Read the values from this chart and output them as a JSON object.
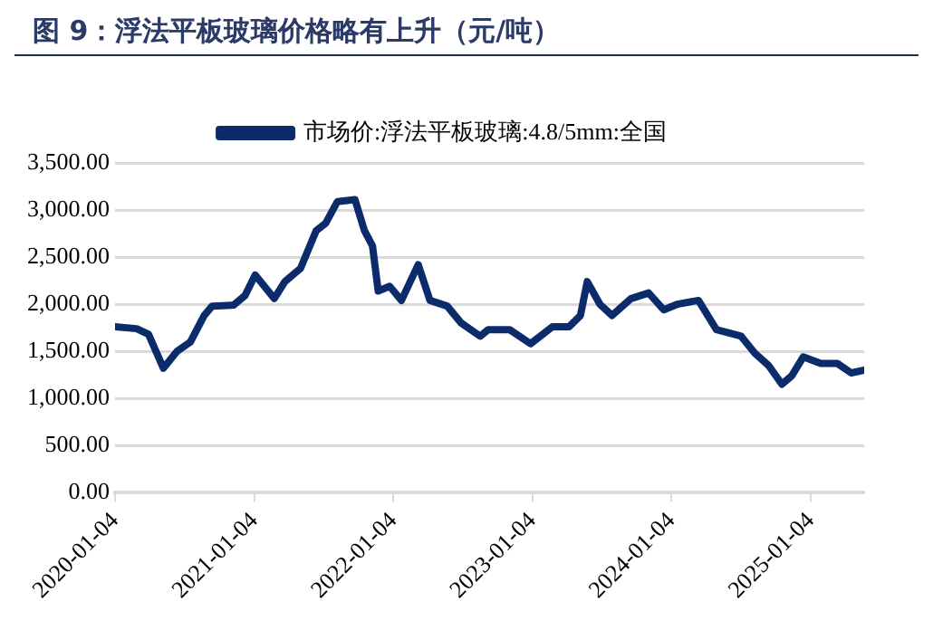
{
  "chart_data": {
    "type": "line",
    "title": "图 9：浮法平板玻璃价格略有上升（元/吨）",
    "x": [
      "2020-01-04",
      "2020-03-01",
      "2020-04-01",
      "2020-05-10",
      "2020-06-15",
      "2020-07-20",
      "2020-08-25",
      "2020-09-15",
      "2020-11-10",
      "2020-12-10",
      "2021-01-06",
      "2021-02-25",
      "2021-03-25",
      "2021-05-05",
      "2021-06-15",
      "2021-07-10",
      "2021-08-10",
      "2021-09-25",
      "2021-10-20",
      "2021-11-10",
      "2021-11-25",
      "2021-12-25",
      "2022-01-25",
      "2022-03-10",
      "2022-04-10",
      "2022-05-25",
      "2022-07-01",
      "2022-08-20",
      "2022-09-10",
      "2022-11-05",
      "2022-12-30",
      "2023-02-25",
      "2023-04-10",
      "2023-05-10",
      "2023-05-28",
      "2023-06-30",
      "2023-08-01",
      "2023-09-20",
      "2023-11-05",
      "2023-12-15",
      "2024-01-20",
      "2024-03-15",
      "2024-05-01",
      "2024-07-05",
      "2024-08-10",
      "2024-09-15",
      "2024-10-20",
      "2024-11-15",
      "2024-12-15",
      "2025-01-30",
      "2025-03-15",
      "2025-04-20",
      "2025-05-24"
    ],
    "series": [
      {
        "name": "市场价:浮法平板玻璃:4.8/5mm:全国",
        "color": "#0b2b6b",
        "values": [
          1760,
          1740,
          1680,
          1320,
          1500,
          1600,
          1880,
          1980,
          1990,
          2090,
          2310,
          2060,
          2240,
          2380,
          2780,
          2860,
          3090,
          3110,
          2780,
          2620,
          2140,
          2190,
          2040,
          2420,
          2040,
          1980,
          1800,
          1660,
          1730,
          1730,
          1580,
          1760,
          1760,
          1880,
          2240,
          2000,
          1880,
          2060,
          2120,
          1940,
          2000,
          2040,
          1730,
          1660,
          1480,
          1350,
          1150,
          1240,
          1440,
          1370,
          1370,
          1270,
          1300
        ]
      }
    ],
    "xlim": [
      "2020-01-04",
      "2025-05-24"
    ],
    "xticks": [
      "2020-01-04",
      "2021-01-04",
      "2022-01-04",
      "2023-01-04",
      "2024-01-04",
      "2025-01-04"
    ],
    "ylim": [
      0,
      3500
    ],
    "yticks": [
      {
        "value": 0,
        "label": "0.00"
      },
      {
        "value": 500,
        "label": "500.00"
      },
      {
        "value": 1000,
        "label": "1,000.00"
      },
      {
        "value": 1500,
        "label": "1,500.00"
      },
      {
        "value": 2000,
        "label": "2,000.00"
      },
      {
        "value": 2500,
        "label": "2,500.00"
      },
      {
        "value": 3000,
        "label": "3,000.00"
      },
      {
        "value": 3500,
        "label": "3,500.00"
      }
    ],
    "grid": "y",
    "legend": "top",
    "marker": "none",
    "line_style": "solid"
  }
}
